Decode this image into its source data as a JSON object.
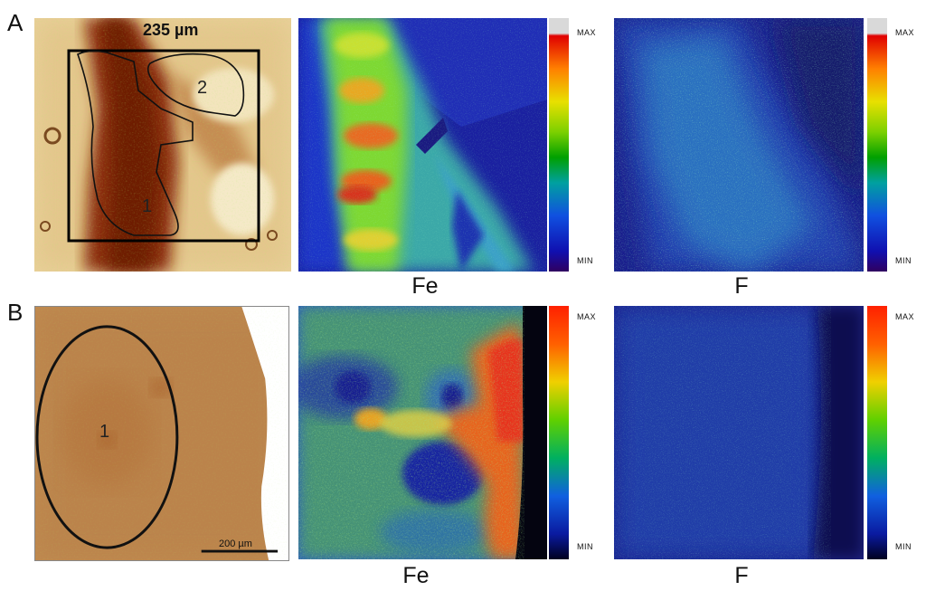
{
  "rows": [
    {
      "label": "A",
      "optical": {
        "dimension_label": "235 µm",
        "regions": [
          "1",
          "2"
        ]
      },
      "maps": [
        {
          "element": "Fe",
          "colorbar_max": "MAX",
          "colorbar_min": "MIN"
        },
        {
          "element": "F",
          "colorbar_max": "MAX",
          "colorbar_min": "MIN"
        }
      ]
    },
    {
      "label": "B",
      "optical": {
        "scale_bar": "200 µm",
        "regions": [
          "1"
        ]
      },
      "maps": [
        {
          "element": "Fe",
          "colorbar_max": "MAX",
          "colorbar_min": "MIN"
        },
        {
          "element": "F",
          "colorbar_max": "MAX",
          "colorbar_min": "MIN"
        }
      ]
    }
  ],
  "colors": {
    "tissue_light": "#e8c48a",
    "tissue_dark": "#9a3a12",
    "map_background": "#1a23a8",
    "map_hot": "#e8321e",
    "map_mid": "#7ed832"
  }
}
